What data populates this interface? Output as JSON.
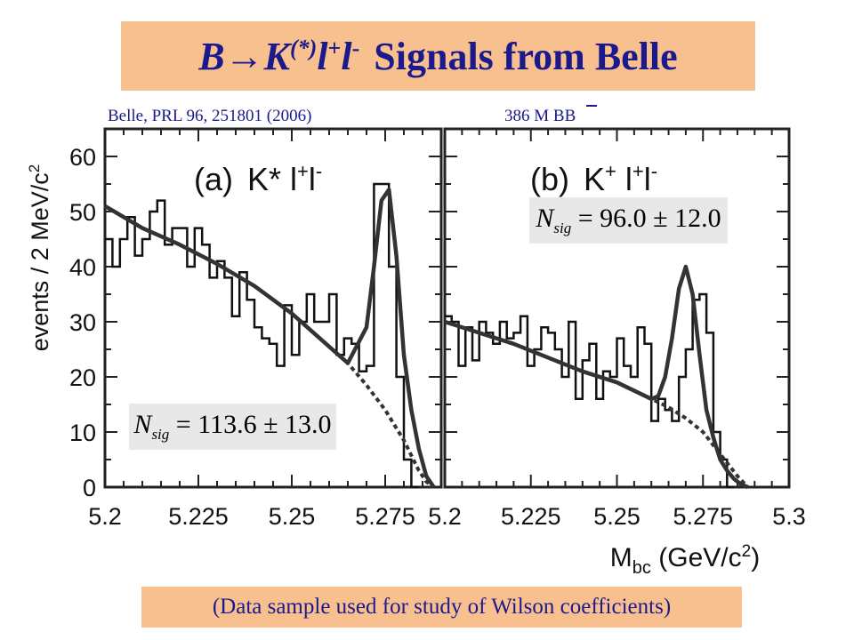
{
  "slide": {
    "title_symbol": "B→K",
    "title_sup1": "(*)",
    "title_l": "l",
    "title_sup2": "+",
    "title_l2": "l",
    "title_sup3": "-",
    "title_rest": "Signals from Belle",
    "citation": "Belle, PRL 96, 251801 (2006)",
    "sample": "386 M BB",
    "footer": "(Data sample used for study of Wilson coefficients)",
    "nsig_a": "113.6 ± 13.0",
    "nsig_b": "96.0 ± 12.0",
    "nsig_label": "N",
    "nsig_sub": "sig"
  },
  "chart_data": [
    {
      "type": "line",
      "panel": "(a)",
      "label": "K* l+l-",
      "xlabel": "",
      "ylabel": "events / 2 MeV/c²",
      "xlim": [
        5.2,
        5.29
      ],
      "ylim": [
        0,
        65
      ],
      "xticks": [
        "5.2",
        "5.225",
        "5.25",
        "5.275"
      ],
      "yticks": [
        "0",
        "10",
        "20",
        "30",
        "40",
        "50",
        "60"
      ],
      "histogram": {
        "bin_width": 0.002,
        "start": 5.2,
        "values": [
          45,
          40,
          45,
          49,
          42,
          45,
          50,
          52,
          44,
          47,
          47,
          40,
          47,
          44,
          38,
          41,
          38,
          31,
          39,
          34,
          29,
          27,
          26,
          22,
          33,
          24,
          30,
          35,
          30,
          30,
          35,
          24,
          27,
          26,
          21,
          22,
          55,
          55,
          40,
          20,
          5,
          0
        ]
      },
      "fit_total": {
        "x": [
          5.2,
          5.21,
          5.22,
          5.23,
          5.24,
          5.25,
          5.26,
          5.265,
          5.27,
          5.272,
          5.274,
          5.276,
          5.278,
          5.28,
          5.282,
          5.284,
          5.286,
          5.288
        ],
        "y": [
          51,
          47,
          44,
          40.5,
          36.5,
          31.5,
          25.5,
          22.5,
          29,
          40,
          52,
          54,
          42,
          24,
          14,
          7,
          2,
          0
        ]
      },
      "fit_background": {
        "x": [
          5.2,
          5.21,
          5.22,
          5.23,
          5.24,
          5.25,
          5.26,
          5.265,
          5.27,
          5.275,
          5.28,
          5.284,
          5.286,
          5.288
        ],
        "y": [
          51,
          47,
          44,
          40.5,
          36.5,
          31.5,
          25.5,
          22.5,
          18.5,
          14,
          8.5,
          3,
          1,
          0
        ]
      }
    },
    {
      "type": "line",
      "panel": "(b)",
      "label": "K+ l+l-",
      "xlabel": "Mbc (GeV/c²)",
      "ylabel": "",
      "xlim": [
        5.2,
        5.3
      ],
      "ylim": [
        0,
        65
      ],
      "xticks": [
        "5.2",
        "5.225",
        "5.25",
        "5.275",
        "5.3"
      ],
      "histogram": {
        "bin_width": 0.002,
        "start": 5.2,
        "values": [
          31,
          30,
          22,
          29,
          23,
          30,
          28,
          26,
          30,
          27,
          28,
          31,
          22,
          25,
          29,
          28,
          25,
          20,
          30,
          16,
          23,
          26,
          16,
          21,
          20,
          27,
          22,
          20,
          29,
          26,
          12,
          16,
          14,
          12,
          20,
          25,
          34,
          35,
          28,
          10,
          5,
          0
        ]
      },
      "fit_total": {
        "x": [
          5.2,
          5.21,
          5.22,
          5.23,
          5.24,
          5.25,
          5.26,
          5.262,
          5.264,
          5.266,
          5.268,
          5.27,
          5.272,
          5.274,
          5.276,
          5.278,
          5.28,
          5.282,
          5.284,
          5.286,
          5.288
        ],
        "y": [
          30,
          28,
          26,
          23.5,
          21,
          19,
          16,
          16.5,
          20,
          27,
          36,
          40,
          35,
          24,
          14,
          9,
          5,
          3,
          1.5,
          0.5,
          0
        ]
      },
      "fit_background": {
        "x": [
          5.2,
          5.21,
          5.22,
          5.23,
          5.24,
          5.25,
          5.26,
          5.265,
          5.27,
          5.275,
          5.28,
          5.285,
          5.288
        ],
        "y": [
          30,
          28,
          26,
          23.5,
          21,
          19,
          16,
          14.5,
          12.5,
          10,
          6,
          2,
          0
        ]
      }
    }
  ]
}
